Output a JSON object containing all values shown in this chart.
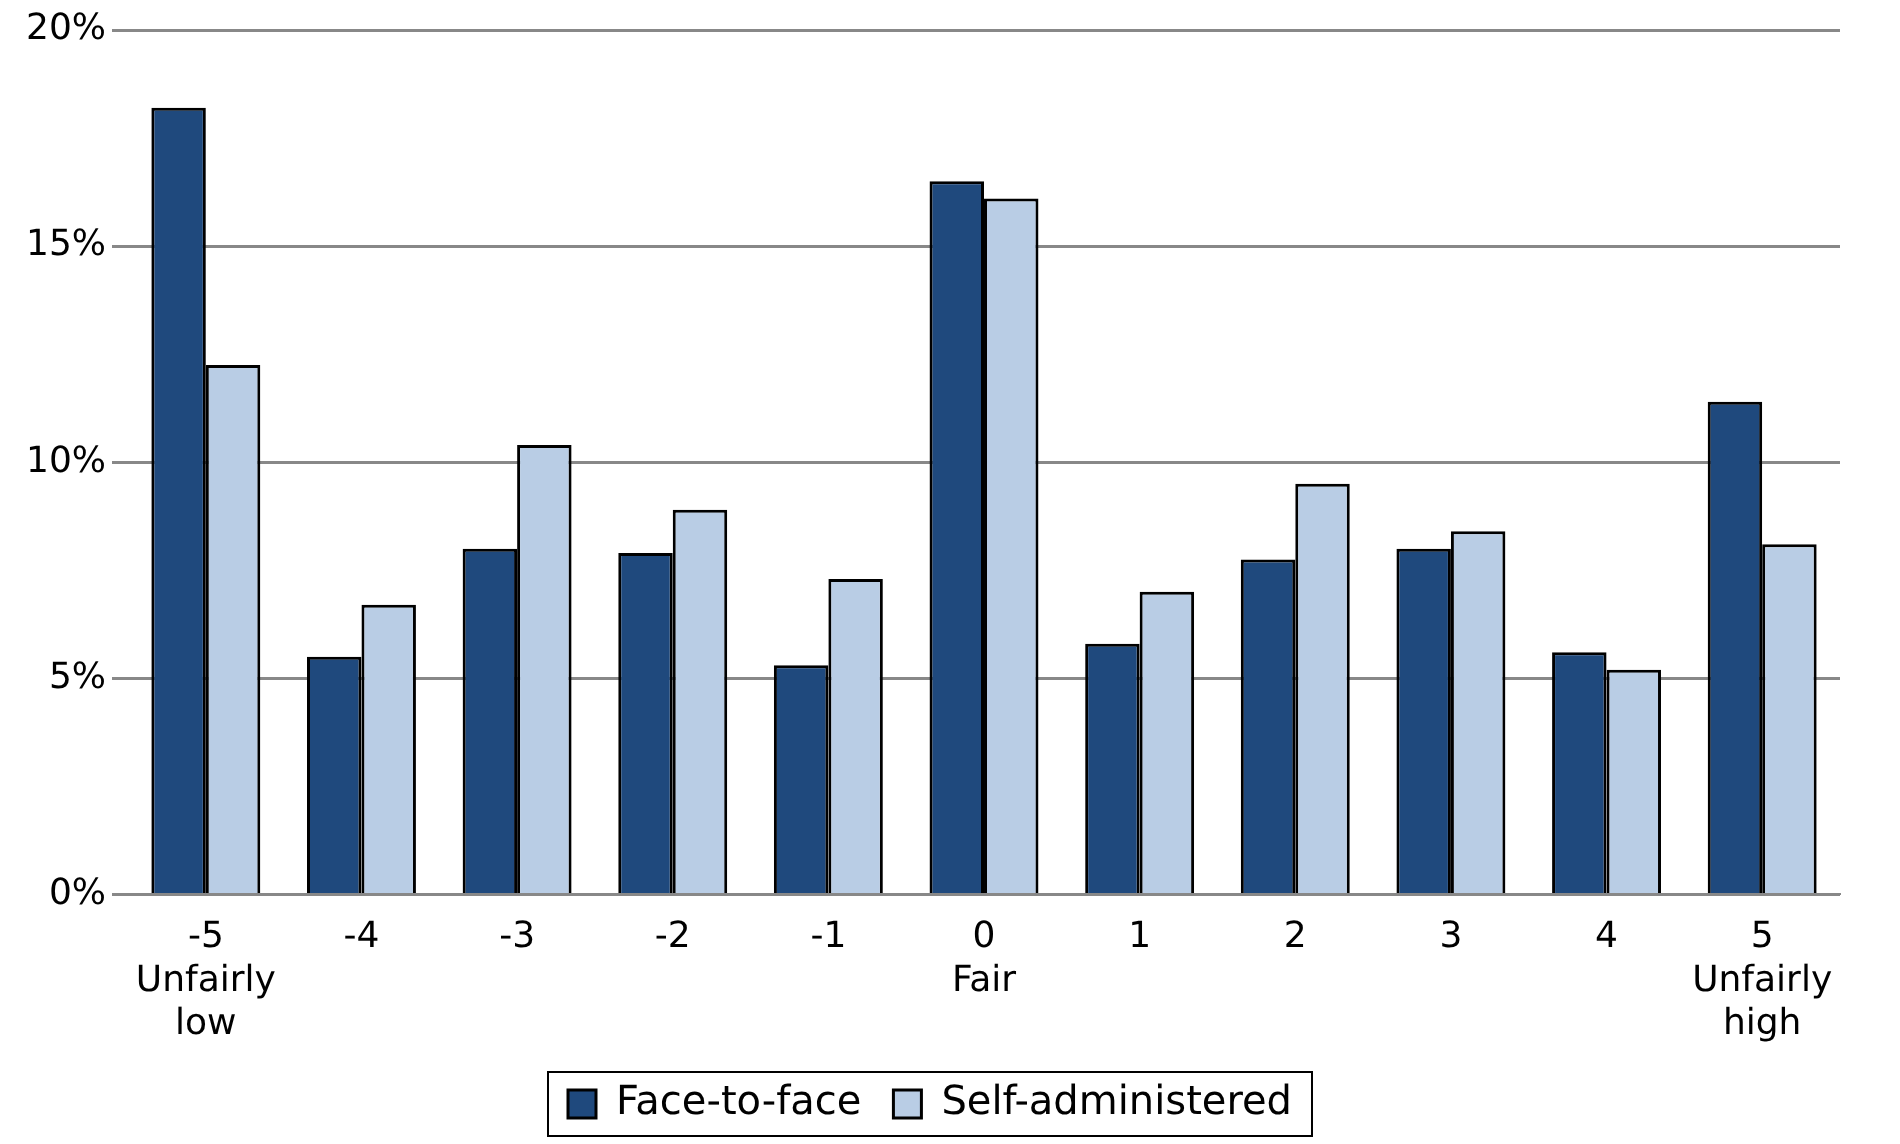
{
  "chart_data": {
    "type": "bar",
    "categories": [
      "-5\nUnfairly\nlow",
      "-4",
      "-3",
      "-2",
      "-1",
      "0\nFair",
      "1",
      "2",
      "3",
      "4",
      "5\nUnfairly\nhigh"
    ],
    "series": [
      {
        "name": "Face-to-face",
        "color": "#1f497d",
        "values": [
          18.2,
          5.5,
          8.0,
          7.9,
          5.3,
          16.5,
          5.8,
          7.75,
          8.0,
          5.6,
          11.4
        ]
      },
      {
        "name": "Self-administered",
        "color": "#b9cde5",
        "values": [
          12.25,
          6.7,
          10.4,
          8.9,
          7.3,
          16.1,
          7.0,
          9.5,
          8.4,
          5.2,
          8.1
        ]
      }
    ],
    "ylim": [
      0,
      20
    ],
    "yticks": [
      {
        "value": 0,
        "label": "0%"
      },
      {
        "value": 5,
        "label": "5%"
      },
      {
        "value": 10,
        "label": "10%"
      },
      {
        "value": 15,
        "label": "15%"
      },
      {
        "value": 20,
        "label": "20%"
      }
    ],
    "grid": "y",
    "legend": "bottom"
  }
}
